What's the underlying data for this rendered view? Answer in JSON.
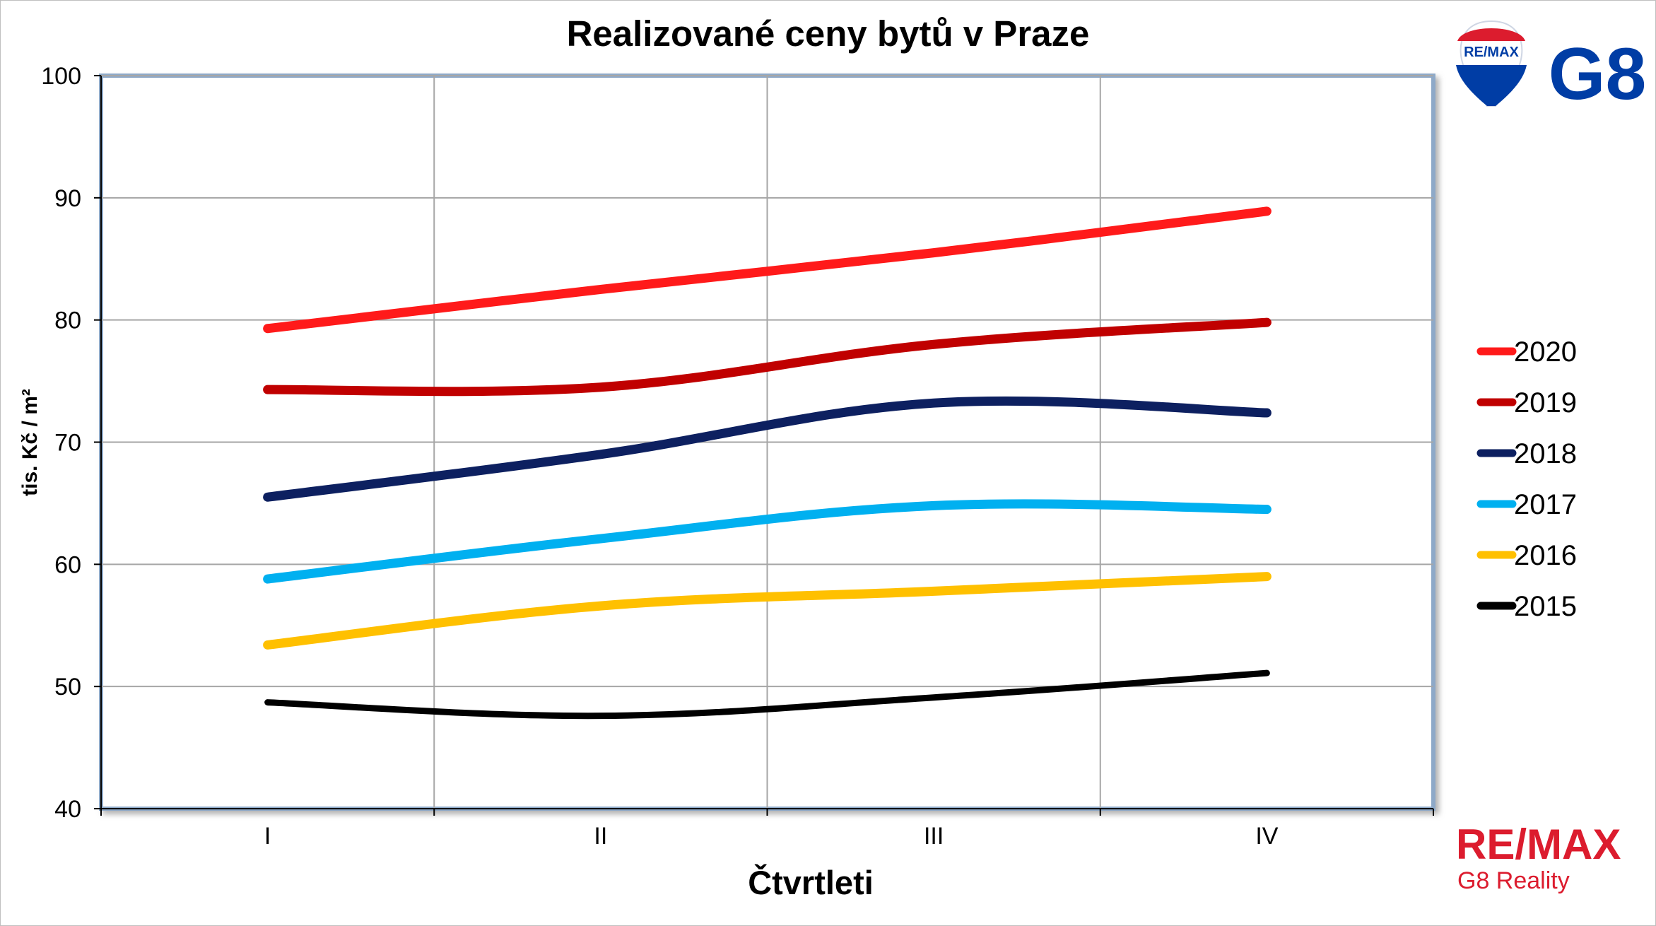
{
  "chart_data": {
    "type": "line",
    "title": "Realizované ceny bytů v Praze",
    "xlabel": "Čtvrtleti",
    "ylabel": "tis. Kč / m²",
    "categories": [
      "I",
      "II",
      "III",
      "IV"
    ],
    "ylim": [
      40,
      100
    ],
    "yticks": [
      40,
      50,
      60,
      70,
      80,
      90,
      100
    ],
    "grid": true,
    "legend_position": "right",
    "series": [
      {
        "name": "2020",
        "values": [
          79.3,
          82.5,
          85.5,
          88.9
        ],
        "color": "#ff1a1a"
      },
      {
        "name": "2019",
        "values": [
          74.3,
          74.5,
          78.0,
          79.8
        ],
        "color": "#c00000"
      },
      {
        "name": "2018",
        "values": [
          65.5,
          69.0,
          73.2,
          72.4
        ],
        "color": "#0d2060"
      },
      {
        "name": "2017",
        "values": [
          58.8,
          62.1,
          64.8,
          64.5
        ],
        "color": "#00b0f0"
      },
      {
        "name": "2016",
        "values": [
          53.4,
          56.6,
          57.8,
          59.0
        ],
        "color": "#ffc000"
      },
      {
        "name": "2015",
        "values": [
          48.7,
          47.6,
          49.1,
          51.1
        ],
        "color": "#000000"
      }
    ]
  },
  "logos": {
    "top_logo_text": "G8",
    "balloon_text": "RE/MAX",
    "bottom_brand": "RE/MAX",
    "bottom_sub": "G8 Reality"
  },
  "colors": {
    "remax_red": "#dc1c2e",
    "remax_blue": "#003da5"
  }
}
